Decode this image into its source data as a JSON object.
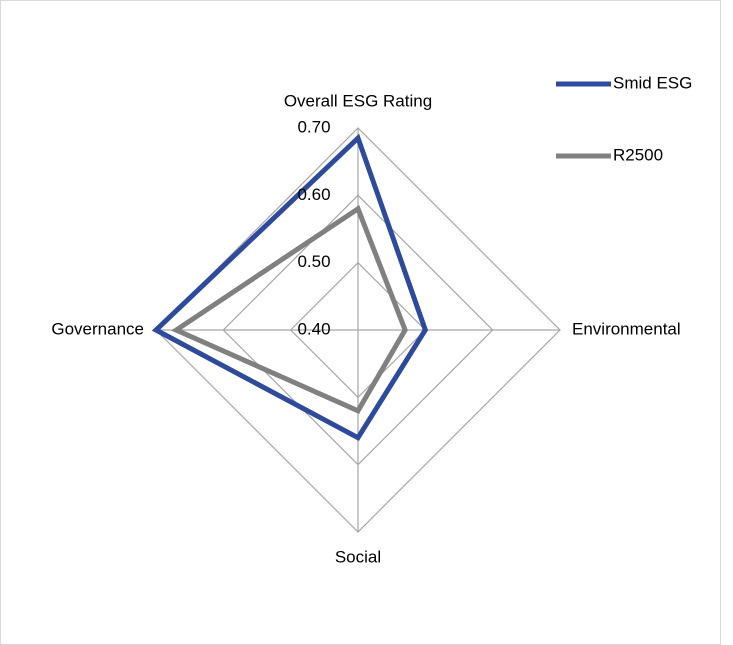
{
  "chart_data": {
    "type": "radar",
    "categories": [
      "Overall ESG Rating",
      "Environmental",
      "Social",
      "Governance"
    ],
    "series": [
      {
        "name": "Smid ESG",
        "color": "#2e4a9c",
        "values": [
          0.685,
          0.5,
          0.56,
          0.7
        ]
      },
      {
        "name": "R2500",
        "color": "#808080",
        "values": [
          0.58,
          0.47,
          0.52,
          0.67
        ]
      }
    ],
    "ylim": [
      0.4,
      0.7
    ],
    "yticks": [
      {
        "value": 0.4,
        "label": "0.40"
      },
      {
        "value": 0.5,
        "label": "0.50"
      },
      {
        "value": 0.6,
        "label": "0.60"
      },
      {
        "value": 0.7,
        "label": "0.70"
      }
    ],
    "grid": true,
    "legend": "top-right"
  }
}
